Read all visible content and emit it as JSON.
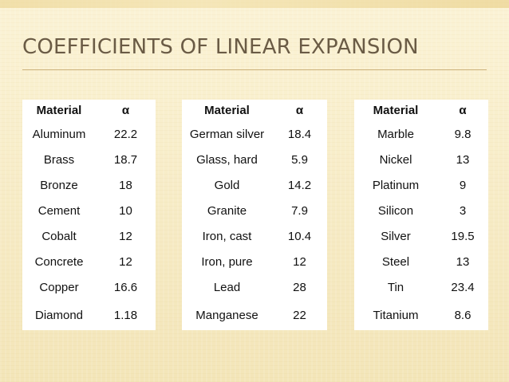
{
  "slide": {
    "title": "COEFFICIENTS OF LINEAR EXPANSION"
  },
  "tables": [
    {
      "header": [
        "Material",
        "α"
      ],
      "rows": [
        [
          "Aluminum",
          "22.2"
        ],
        [
          "Brass",
          "18.7"
        ],
        [
          "Bronze",
          "18"
        ],
        [
          "Cement",
          "10"
        ],
        [
          "Cobalt",
          "12"
        ],
        [
          "Concrete",
          "12"
        ],
        [
          "Copper",
          "16.6"
        ],
        [
          "Diamond",
          "1.18"
        ]
      ]
    },
    {
      "header": [
        "Material",
        "α"
      ],
      "rows": [
        [
          "German silver",
          "18.4"
        ],
        [
          "Glass, hard",
          "5.9"
        ],
        [
          "Gold",
          "14.2"
        ],
        [
          "Granite",
          "7.9"
        ],
        [
          "Iron, cast",
          "10.4"
        ],
        [
          "Iron, pure",
          "12"
        ],
        [
          "Lead",
          "28"
        ],
        [
          "Manganese",
          "22"
        ]
      ]
    },
    {
      "header": [
        "Material",
        "α"
      ],
      "rows": [
        [
          "Marble",
          "9.8"
        ],
        [
          "Nickel",
          "13"
        ],
        [
          "Platinum",
          "9"
        ],
        [
          "Silicon",
          "3"
        ],
        [
          "Silver",
          "19.5"
        ],
        [
          "Steel",
          "13"
        ],
        [
          "Tin",
          "23.4"
        ],
        [
          "Titanium",
          "8.6"
        ]
      ]
    }
  ]
}
